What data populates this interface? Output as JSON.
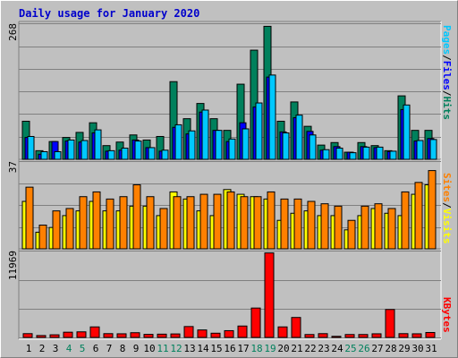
{
  "title": "Daily usage for January 2020",
  "colors": {
    "hits": "#00805c",
    "files": "#0000ff",
    "pages": "#00c8ff",
    "visits": "#ffff00",
    "sites": "#ff8000",
    "kbytes": "#ff0000",
    "weekday": "#000000",
    "weekend": "#00805c",
    "separator": "#000000"
  },
  "legend": {
    "top": [
      {
        "text": "Pages",
        "color": "#00c8ff"
      },
      {
        "text": "/",
        "color": "#000000"
      },
      {
        "text": "Files",
        "color": "#0000ff"
      },
      {
        "text": "/",
        "color": "#000000"
      },
      {
        "text": "Hits",
        "color": "#00805c"
      }
    ],
    "middle": [
      {
        "text": "Sites",
        "color": "#ff8000"
      },
      {
        "text": "/",
        "color": "#000000"
      },
      {
        "text": "Visits",
        "color": "#ffff00"
      }
    ],
    "bottom": [
      {
        "text": "KBytes",
        "color": "#ff0000"
      }
    ]
  },
  "chart_data": [
    {
      "type": "bar",
      "panel": "hits-files-pages",
      "ymax_label": "268",
      "ylim": [
        0,
        268
      ],
      "grid": true,
      "categories": [
        "1",
        "2",
        "3",
        "4",
        "5",
        "6",
        "7",
        "8",
        "9",
        "10",
        "11",
        "12",
        "13",
        "14",
        "15",
        "16",
        "17",
        "18",
        "19",
        "20",
        "21",
        "22",
        "23",
        "24",
        "25",
        "26",
        "27",
        "28",
        "29",
        "30",
        "31"
      ],
      "series": [
        {
          "name": "Hits",
          "values": [
            75,
            17,
            35,
            43,
            53,
            72,
            27,
            34,
            48,
            38,
            45,
            153,
            80,
            110,
            80,
            57,
            148,
            215,
            262,
            75,
            113,
            65,
            28,
            33,
            14,
            33,
            27,
            17,
            125,
            57,
            57
          ]
        },
        {
          "name": "Files",
          "values": [
            43,
            10,
            35,
            36,
            34,
            52,
            16,
            18,
            38,
            23,
            16,
            63,
            50,
            93,
            57,
            35,
            72,
            103,
            162,
            54,
            82,
            55,
            18,
            25,
            14,
            25,
            23,
            15,
            98,
            36,
            41
          ]
        },
        {
          "name": "Pages",
          "values": [
            45,
            15,
            15,
            38,
            37,
            58,
            17,
            22,
            36,
            23,
            18,
            68,
            56,
            97,
            57,
            40,
            60,
            111,
            166,
            52,
            87,
            48,
            19,
            22,
            13,
            24,
            24,
            16,
            107,
            37,
            39
          ]
        }
      ]
    },
    {
      "type": "bar",
      "panel": "visits-sites",
      "ymax_label": "37",
      "ylim": [
        0,
        37
      ],
      "grid": true,
      "categories": [
        "1",
        "2",
        "3",
        "4",
        "5",
        "6",
        "7",
        "8",
        "9",
        "10",
        "11",
        "12",
        "13",
        "14",
        "15",
        "16",
        "17",
        "18",
        "19",
        "20",
        "21",
        "22",
        "23",
        "24",
        "25",
        "26",
        "27",
        "28",
        "29",
        "30",
        "31"
      ],
      "series": [
        {
          "name": "Visits",
          "values": [
            20,
            7,
            9,
            14,
            16,
            20,
            16,
            16,
            18,
            18,
            14,
            24,
            21,
            16,
            14,
            25,
            23,
            22,
            21,
            12,
            15,
            16,
            14,
            14,
            8,
            14,
            17,
            15,
            14,
            23,
            27
          ]
        },
        {
          "name": "Sites",
          "values": [
            26,
            10,
            16,
            17,
            22,
            24,
            21,
            22,
            27,
            22,
            17,
            22,
            22,
            23,
            23,
            24,
            22,
            22,
            24,
            21,
            21,
            20,
            19,
            18,
            12,
            18,
            19,
            17,
            24,
            28,
            33
          ]
        }
      ]
    },
    {
      "type": "bar",
      "panel": "kbytes",
      "ymax_label": "11969",
      "ylim": [
        0,
        11969
      ],
      "grid": true,
      "categories": [
        "1",
        "2",
        "3",
        "4",
        "5",
        "6",
        "7",
        "8",
        "9",
        "10",
        "11",
        "12",
        "13",
        "14",
        "15",
        "16",
        "17",
        "18",
        "19",
        "20",
        "21",
        "22",
        "23",
        "24",
        "25",
        "26",
        "27",
        "28",
        "29",
        "30",
        "31"
      ],
      "series": [
        {
          "name": "KBytes",
          "values": [
            520,
            260,
            360,
            720,
            770,
            1450,
            520,
            500,
            650,
            420,
            450,
            480,
            1500,
            1030,
            580,
            930,
            1570,
            4050,
            11650,
            1450,
            2750,
            400,
            520,
            150,
            400,
            400,
            500,
            3850,
            520,
            500,
            680
          ]
        }
      ]
    }
  ],
  "weekend_days": [
    4,
    5,
    11,
    12,
    18,
    19,
    25,
    26
  ]
}
